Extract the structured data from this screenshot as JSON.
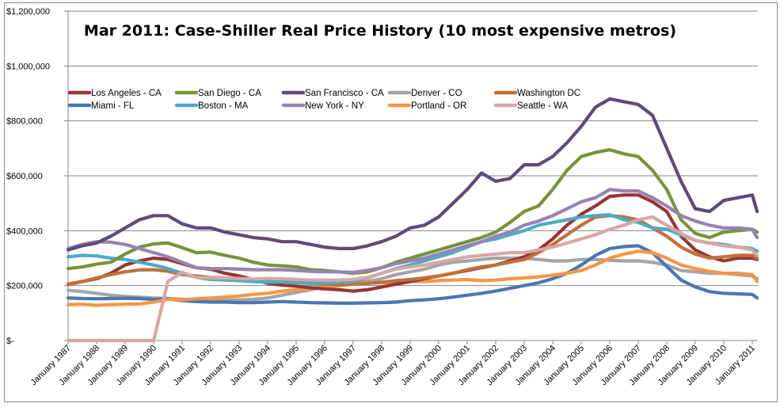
{
  "chart_data": {
    "type": "line",
    "title": "Mar 2011: Case-Shiller Real Price History (10 most expensive metros)",
    "xlabel": "",
    "ylabel": "",
    "ylim": [
      0,
      1200000
    ],
    "yticks": [
      0,
      200000,
      400000,
      600000,
      800000,
      1000000,
      1200000
    ],
    "ytick_labels": [
      "$-",
      "$200,000",
      "$400,000",
      "$600,000",
      "$800,000",
      "$1,000,000",
      "$1,200,000"
    ],
    "xlim": [
      1987.0,
      2011.2
    ],
    "xtick_labels": [
      "January 1987",
      "January 1988",
      "January 1989",
      "January 1990",
      "January 1991",
      "January 1992",
      "January 1993",
      "January 1994",
      "January 1995",
      "January 1996",
      "January 1997",
      "January 1998",
      "January 1999",
      "January 2000",
      "January 2001",
      "January 2002",
      "January 2003",
      "January 2004",
      "January 2005",
      "January 2006",
      "January 2007",
      "January 2008",
      "January 2009",
      "January 2010",
      "January 2011"
    ],
    "grid": "horizontal",
    "legend_position": "top-left inside",
    "x": [
      1987.0,
      1987.5,
      1988.0,
      1988.5,
      1989.0,
      1989.5,
      1990.0,
      1990.5,
      1991.0,
      1991.5,
      1992.0,
      1992.5,
      1993.0,
      1993.5,
      1994.0,
      1994.5,
      1995.0,
      1995.5,
      1996.0,
      1996.5,
      1997.0,
      1997.5,
      1998.0,
      1998.5,
      1999.0,
      1999.5,
      2000.0,
      2000.5,
      2001.0,
      2001.5,
      2002.0,
      2002.5,
      2003.0,
      2003.5,
      2004.0,
      2004.5,
      2005.0,
      2005.5,
      2006.0,
      2006.5,
      2007.0,
      2007.5,
      2008.0,
      2008.5,
      2009.0,
      2009.5,
      2010.0,
      2010.5,
      2011.0,
      2011.17
    ],
    "series": [
      {
        "name": "Los Angeles - CA",
        "color": "#953735",
        "values": [
          205000,
          215000,
          225000,
          245000,
          275000,
          290000,
          300000,
          295000,
          280000,
          265000,
          260000,
          245000,
          235000,
          222000,
          208000,
          202000,
          198000,
          192000,
          188000,
          185000,
          180000,
          185000,
          195000,
          205000,
          215000,
          225000,
          235000,
          245000,
          255000,
          265000,
          275000,
          290000,
          305000,
          330000,
          370000,
          420000,
          460000,
          490000,
          525000,
          530000,
          530000,
          505000,
          470000,
          380000,
          330000,
          305000,
          290000,
          300000,
          300000,
          295000
        ]
      },
      {
        "name": "San Diego - CA",
        "color": "#77933c",
        "values": [
          262000,
          268000,
          278000,
          285000,
          315000,
          340000,
          352000,
          355000,
          338000,
          320000,
          322000,
          310000,
          300000,
          285000,
          275000,
          272000,
          268000,
          258000,
          255000,
          250000,
          245000,
          250000,
          265000,
          285000,
          300000,
          315000,
          330000,
          345000,
          360000,
          375000,
          395000,
          430000,
          470000,
          490000,
          550000,
          620000,
          670000,
          685000,
          695000,
          680000,
          670000,
          620000,
          550000,
          440000,
          390000,
          375000,
          395000,
          400000,
          405000,
          395000
        ]
      },
      {
        "name": "San Francisco - CA",
        "color": "#604a7b",
        "values": [
          330000,
          345000,
          355000,
          380000,
          410000,
          440000,
          455000,
          455000,
          425000,
          410000,
          410000,
          395000,
          385000,
          375000,
          370000,
          360000,
          360000,
          350000,
          340000,
          335000,
          335000,
          345000,
          360000,
          380000,
          410000,
          420000,
          450000,
          500000,
          550000,
          610000,
          580000,
          590000,
          640000,
          640000,
          670000,
          720000,
          780000,
          850000,
          880000,
          870000,
          860000,
          820000,
          700000,
          580000,
          480000,
          470000,
          510000,
          520000,
          530000,
          470000
        ]
      },
      {
        "name": "Denver - CO",
        "color": "#a5a5a5",
        "values": [
          183000,
          178000,
          172000,
          165000,
          160000,
          158000,
          155000,
          153000,
          150000,
          148000,
          147000,
          146000,
          148000,
          150000,
          155000,
          165000,
          175000,
          185000,
          195000,
          200000,
          205000,
          215000,
          225000,
          240000,
          250000,
          260000,
          275000,
          285000,
          290000,
          295000,
          300000,
          300000,
          300000,
          295000,
          290000,
          290000,
          295000,
          295000,
          292000,
          290000,
          290000,
          285000,
          275000,
          255000,
          250000,
          245000,
          245000,
          240000,
          235000,
          225000
        ]
      },
      {
        "name": "Washington DC",
        "color": "#c0703b",
        "values": [
          203000,
          215000,
          228000,
          240000,
          250000,
          257000,
          258000,
          252000,
          240000,
          235000,
          230000,
          228000,
          225000,
          222000,
          218000,
          218000,
          215000,
          210000,
          205000,
          203000,
          205000,
          208000,
          212000,
          218000,
          222000,
          228000,
          235000,
          245000,
          258000,
          268000,
          275000,
          285000,
          295000,
          320000,
          350000,
          385000,
          420000,
          450000,
          455000,
          450000,
          440000,
          410000,
          380000,
          340000,
          315000,
          300000,
          305000,
          310000,
          310000,
          300000
        ]
      },
      {
        "name": "Miami - FL",
        "color": "#4a77b3",
        "values": [
          155000,
          153000,
          152000,
          153000,
          154000,
          153000,
          150000,
          152000,
          145000,
          142000,
          140000,
          140000,
          138000,
          138000,
          140000,
          142000,
          140000,
          138000,
          137000,
          136000,
          136000,
          137000,
          138000,
          140000,
          145000,
          148000,
          152000,
          158000,
          165000,
          172000,
          180000,
          190000,
          200000,
          210000,
          225000,
          245000,
          275000,
          310000,
          335000,
          342000,
          345000,
          320000,
          270000,
          220000,
          195000,
          178000,
          172000,
          170000,
          168000,
          155000
        ]
      },
      {
        "name": "Boston - MA",
        "color": "#4bacc6",
        "values": [
          305000,
          310000,
          308000,
          300000,
          295000,
          285000,
          275000,
          262000,
          245000,
          230000,
          222000,
          220000,
          218000,
          215000,
          212000,
          215000,
          210000,
          208000,
          210000,
          212000,
          215000,
          228000,
          245000,
          262000,
          275000,
          290000,
          305000,
          320000,
          340000,
          360000,
          370000,
          385000,
          400000,
          420000,
          430000,
          440000,
          450000,
          455000,
          458000,
          440000,
          430000,
          410000,
          405000,
          385000,
          365000,
          355000,
          350000,
          340000,
          335000,
          325000
        ]
      },
      {
        "name": "New York - NY",
        "color": "#9783b3",
        "values": [
          335000,
          350000,
          360000,
          358000,
          350000,
          335000,
          320000,
          305000,
          285000,
          265000,
          262000,
          262000,
          260000,
          258000,
          258000,
          258000,
          255000,
          252000,
          250000,
          250000,
          248000,
          255000,
          265000,
          280000,
          290000,
          300000,
          315000,
          330000,
          345000,
          360000,
          380000,
          395000,
          420000,
          435000,
          455000,
          480000,
          505000,
          520000,
          550000,
          545000,
          545000,
          520000,
          490000,
          455000,
          435000,
          420000,
          410000,
          410000,
          405000,
          375000
        ]
      },
      {
        "name": "Portland - OR",
        "color": "#f79646",
        "values": [
          130000,
          132000,
          128000,
          130000,
          132000,
          133000,
          140000,
          150000,
          148000,
          152000,
          155000,
          158000,
          162000,
          168000,
          172000,
          180000,
          185000,
          190000,
          195000,
          200000,
          205000,
          210000,
          210000,
          212000,
          215000,
          215000,
          218000,
          220000,
          222000,
          218000,
          220000,
          225000,
          228000,
          232000,
          238000,
          245000,
          255000,
          275000,
          300000,
          315000,
          325000,
          320000,
          300000,
          275000,
          262000,
          252000,
          245000,
          245000,
          240000,
          215000
        ]
      },
      {
        "name": "Seattle - WA",
        "color": "#d9a6a6",
        "values": [
          0,
          0,
          0,
          0,
          0,
          0,
          0,
          215000,
          248000,
          230000,
          228000,
          228000,
          226000,
          224000,
          226000,
          225000,
          222000,
          220000,
          220000,
          220000,
          222000,
          230000,
          245000,
          260000,
          268000,
          275000,
          285000,
          295000,
          305000,
          310000,
          315000,
          320000,
          320000,
          330000,
          340000,
          355000,
          370000,
          385000,
          405000,
          420000,
          440000,
          450000,
          420000,
          390000,
          365000,
          355000,
          345000,
          340000,
          330000,
          310000
        ]
      }
    ]
  }
}
